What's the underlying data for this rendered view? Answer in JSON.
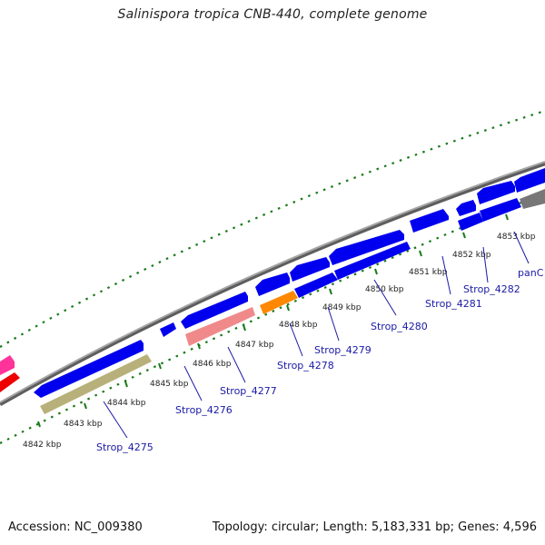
{
  "title": "Salinispora tropica CNB-440, complete genome",
  "footer": {
    "accession": "Accession: NC_009380",
    "summary": "Topology: circular; Length: 5,183,331 bp; Genes: 4,596"
  },
  "colors": {
    "cds": "#0000ee",
    "cds_highlight": "#f08a8a",
    "orange": "#ff8800",
    "olive": "#b8b07a",
    "magenta": "#ff3399",
    "red": "#ee0000",
    "gray": "#777777",
    "backbone": "#8a8a8a",
    "tick": "#1a7a1a",
    "label": "#1a1aa6"
  },
  "ticks": [
    {
      "label": "4842 kbp"
    },
    {
      "label": "4843 kbp"
    },
    {
      "label": "4844 kbp"
    },
    {
      "label": "4845 kbp"
    },
    {
      "label": "4846 kbp"
    },
    {
      "label": "4847 kbp"
    },
    {
      "label": "4848 kbp"
    },
    {
      "label": "4849 kbp"
    },
    {
      "label": "4850 kbp"
    },
    {
      "label": "4851 kbp"
    },
    {
      "label": "4852 kbp"
    },
    {
      "label": "4853 kbp"
    }
  ],
  "gene_labels": [
    {
      "text": "Strop_4275"
    },
    {
      "text": "Strop_4276"
    },
    {
      "text": "Strop_4277"
    },
    {
      "text": "Strop_4278"
    },
    {
      "text": "Strop_4279"
    },
    {
      "text": "Strop_4280"
    },
    {
      "text": "Strop_4281"
    },
    {
      "text": "Strop_4282"
    },
    {
      "text": "panC"
    }
  ]
}
